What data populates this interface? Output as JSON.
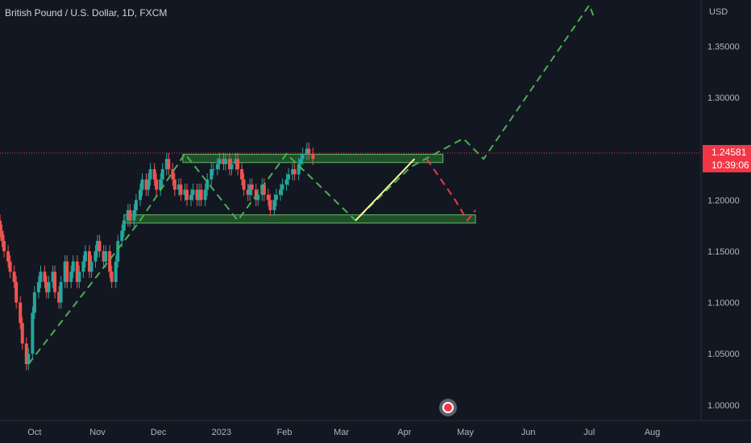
{
  "header": {
    "title": "British Pound / U.S. Dollar, 1D, FXCM",
    "currency": "USD"
  },
  "price_badge": {
    "price": "1.24581",
    "countdown": "10:39:06",
    "color": "#f23645"
  },
  "colors": {
    "up": "#26a69a",
    "down": "#ef5350",
    "zone": "#2e7d32",
    "projection": "#4caf50",
    "projection_down": "#f23645",
    "trendline": "#fff59d",
    "background": "#131722",
    "axis_text": "#b2b5be"
  },
  "chart_data": {
    "type": "candlestick",
    "title": "British Pound / U.S. Dollar, 1D, FXCM",
    "y_ticks": [
      "1.35000",
      "1.30000",
      "1.25000",
      "1.20000",
      "1.15000",
      "1.10000",
      "1.05000",
      "1.00000"
    ],
    "y_tick_values": [
      1.35,
      1.3,
      1.25,
      1.2,
      1.15,
      1.1,
      1.05,
      1.0
    ],
    "x_ticks": [
      "Oct",
      "Nov",
      "Dec",
      "2023",
      "Feb",
      "Mar",
      "Apr",
      "May",
      "Jun",
      "Jul",
      "Aug"
    ],
    "x_tick_dates": [
      "2022-10-01",
      "2022-11-01",
      "2022-12-01",
      "2023-01-01",
      "2023-02-01",
      "2023-03-01",
      "2023-04-01",
      "2023-05-01",
      "2023-06-01",
      "2023-07-01",
      "2023-08-01"
    ],
    "ylim": [
      0.985,
      1.395
    ],
    "xlim": [
      "2022-09-14",
      "2023-08-25"
    ],
    "last_price": 1.24581,
    "candles_close": [
      1.17,
      1.16,
      1.15,
      1.14,
      1.13,
      1.12,
      1.1,
      1.08,
      1.06,
      1.04,
      1.05,
      1.09,
      1.11,
      1.12,
      1.13,
      1.12,
      1.11,
      1.12,
      1.13,
      1.11,
      1.1,
      1.12,
      1.14,
      1.12,
      1.13,
      1.14,
      1.12,
      1.13,
      1.14,
      1.15,
      1.13,
      1.14,
      1.15,
      1.16,
      1.15,
      1.14,
      1.15,
      1.13,
      1.12,
      1.14,
      1.16,
      1.17,
      1.18,
      1.19,
      1.18,
      1.19,
      1.2,
      1.21,
      1.22,
      1.21,
      1.22,
      1.23,
      1.22,
      1.21,
      1.22,
      1.23,
      1.24,
      1.23,
      1.22,
      1.21,
      1.215,
      1.205,
      1.21,
      1.2,
      1.205,
      1.21,
      1.2,
      1.21,
      1.2,
      1.21,
      1.22,
      1.23,
      1.23,
      1.235,
      1.24,
      1.235,
      1.24,
      1.23,
      1.235,
      1.24,
      1.23,
      1.22,
      1.21,
      1.205,
      1.215,
      1.21,
      1.2,
      1.205,
      1.215,
      1.205,
      1.2,
      1.19,
      1.2,
      1.205,
      1.21,
      1.215,
      1.22,
      1.225,
      1.23,
      1.225,
      1.235,
      1.24,
      1.245,
      1.25,
      1.245,
      1.24
    ],
    "candles_start": "2022-09-14",
    "resistance_zone": [
      1.2365,
      1.2445
    ],
    "resistance_zone_dates": [
      "2022-12-13",
      "2023-04-20"
    ],
    "support_zone": [
      1.1775,
      1.1855
    ],
    "support_zone_dates": [
      "2022-11-14",
      "2023-05-06"
    ],
    "projection_up": [
      [
        "2022-09-28",
        1.04
      ],
      [
        "2022-11-22",
        1.18
      ],
      [
        "2022-12-14",
        1.245
      ],
      [
        "2023-01-09",
        1.18
      ],
      [
        "2023-02-02",
        1.245
      ],
      [
        "2023-03-08",
        1.18
      ],
      [
        "2023-04-04",
        1.232
      ],
      [
        "2023-04-16",
        1.245
      ],
      [
        "2023-04-30",
        1.26
      ],
      [
        "2023-05-10",
        1.24
      ],
      [
        "2023-07-01",
        1.39
      ],
      [
        "2023-07-03",
        1.38
      ]
    ],
    "projection_down": [
      [
        "2023-04-12",
        1.24
      ],
      [
        "2023-04-26",
        1.2
      ],
      [
        "2023-05-02",
        1.18
      ],
      [
        "2023-05-06",
        1.19
      ]
    ],
    "trendline": [
      [
        "2023-03-08",
        1.18
      ],
      [
        "2023-04-06",
        1.24
      ]
    ]
  }
}
